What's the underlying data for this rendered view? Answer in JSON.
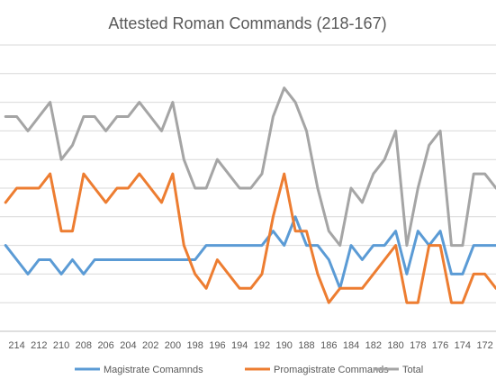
{
  "chart_data": {
    "type": "line",
    "title": "Attested Roman Commands (218-167)",
    "xlabel": "",
    "ylabel": "",
    "x_tick_labels": [
      "214",
      "212",
      "210",
      "208",
      "206",
      "204",
      "202",
      "200",
      "198",
      "196",
      "194",
      "192",
      "190",
      "188",
      "186",
      "184",
      "182",
      "180",
      "178",
      "176",
      "174",
      "172"
    ],
    "x": [
      215,
      214,
      213,
      212,
      211,
      210,
      209,
      208,
      207,
      206,
      205,
      204,
      203,
      202,
      201,
      200,
      199,
      198,
      197,
      196,
      195,
      194,
      193,
      192,
      191,
      190,
      189,
      188,
      187,
      186,
      185,
      184,
      183,
      182,
      181,
      180,
      179,
      178,
      177,
      176,
      175,
      174,
      173,
      172,
      171
    ],
    "x_range": [
      215.5,
      171
    ],
    "ylim": [
      0,
      20
    ],
    "y_gridlines": [
      2,
      4,
      6,
      8,
      10,
      12,
      14,
      16,
      18,
      20
    ],
    "legend_position": "bottom",
    "grid": true,
    "series": [
      {
        "name": "Magistrate Comamnds",
        "color": "#5b9bd5",
        "values": [
          6,
          5,
          4,
          5,
          5,
          4,
          5,
          4,
          5,
          5,
          5,
          5,
          5,
          5,
          5,
          5,
          5,
          5,
          6,
          6,
          6,
          6,
          6,
          6,
          7,
          6,
          8,
          6,
          6,
          5,
          3,
          6,
          5,
          6,
          6,
          7,
          4,
          7,
          6,
          7,
          4,
          4,
          6,
          6,
          6
        ]
      },
      {
        "name": "Promagistrate Commands",
        "color": "#ed7d31",
        "values": [
          9,
          10,
          10,
          10,
          11,
          7,
          7,
          11,
          10,
          9,
          10,
          10,
          11,
          10,
          9,
          11,
          6,
          4,
          3,
          5,
          4,
          3,
          3,
          4,
          8,
          11,
          7,
          7,
          4,
          2,
          3,
          3,
          3,
          4,
          5,
          6,
          2,
          2,
          6,
          6,
          2,
          2,
          4,
          4,
          3
        ]
      },
      {
        "name": "Total",
        "color": "#a5a5a5",
        "values": [
          15,
          15,
          14,
          15,
          16,
          12,
          13,
          15,
          15,
          14,
          15,
          15,
          16,
          15,
          14,
          16,
          12,
          10,
          10,
          12,
          11,
          10,
          10,
          11,
          15,
          17,
          16,
          14,
          10,
          7,
          6,
          10,
          9,
          11,
          12,
          14,
          6,
          10,
          13,
          14,
          6,
          6,
          11,
          11,
          10
        ]
      }
    ]
  }
}
